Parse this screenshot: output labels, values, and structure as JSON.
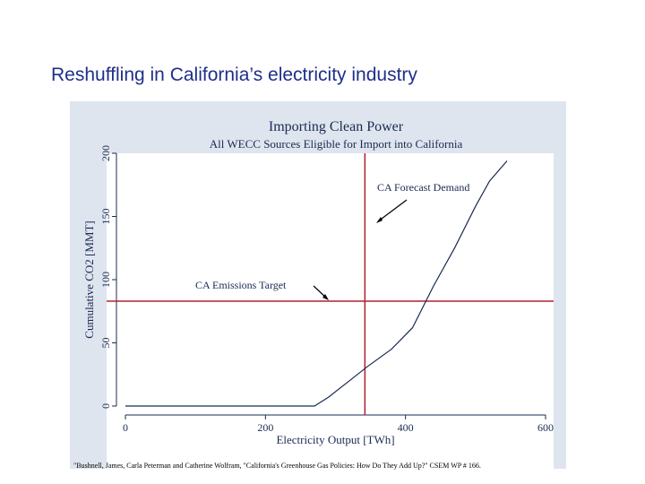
{
  "slide": {
    "title": "Reshuffling in California’s electricity industry",
    "footnote": "\"Bushnell, James, Carla Peterman and Catherine Wolfram, \"California's Greenhouse Gas Policies: How Do They Add Up?\" CSEM WP # 166."
  },
  "colors": {
    "title_text": "#1f2f8a",
    "panel_background": "#dfe5ee",
    "plot_background": "#ffffff",
    "series_line": "#1a2a52",
    "reference_lines": "#b02030"
  },
  "chart_data": {
    "type": "line",
    "title": "Importing Clean Power",
    "subtitle": "All WECC Sources Eligible for Import into California",
    "xlabel": "Electricity Output [TWh]",
    "ylabel": "Cumulative CO2 [MMT]",
    "xlim": [
      0,
      600
    ],
    "ylim": [
      0,
      200
    ],
    "xticks": [
      0,
      200,
      400,
      600
    ],
    "yticks": [
      0,
      50,
      100,
      150,
      200
    ],
    "grid": false,
    "series": [
      {
        "x": [
          0,
          100,
          200,
          270,
          290,
          320,
          345,
          380,
          410,
          440,
          470,
          500,
          520,
          545
        ],
        "y": [
          0,
          0,
          0,
          0,
          7,
          20,
          31,
          45,
          62,
          95,
          125,
          158,
          178,
          194
        ]
      }
    ],
    "reference_lines": [
      {
        "orientation": "vertical",
        "x": 342,
        "label": "CA Forecast Demand"
      },
      {
        "orientation": "horizontal",
        "y": 83,
        "label": "CA Emissions Target"
      }
    ]
  }
}
